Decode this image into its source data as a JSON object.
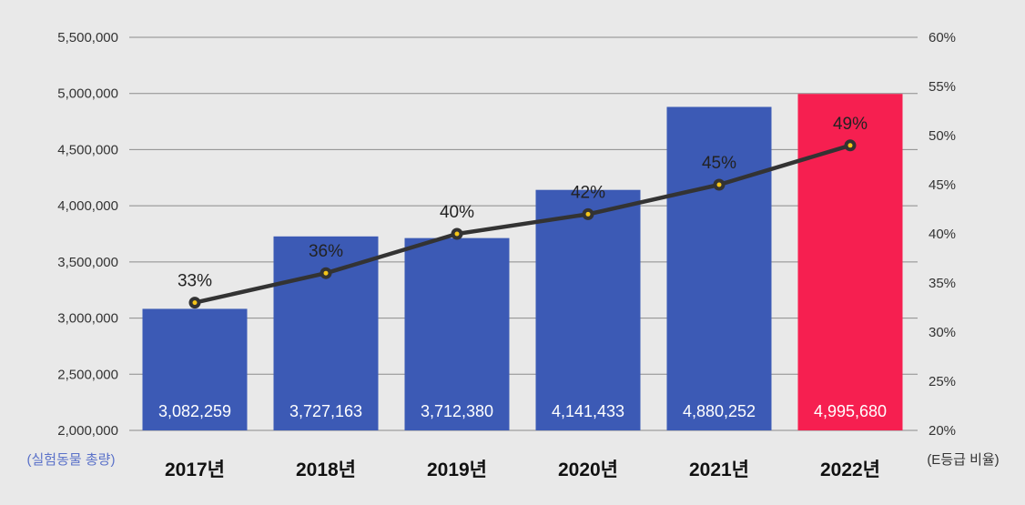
{
  "chart_data": {
    "type": "bar",
    "categories": [
      "2017년",
      "2018년",
      "2019년",
      "2020년",
      "2021년",
      "2022년"
    ],
    "series": [
      {
        "values": [
          3082259,
          3727163,
          3712380,
          4141433,
          4880252,
          4995680
        ],
        "value_labels": [
          "3,082,259",
          "3,727,163",
          "3,712,380",
          "4,141,433",
          "4,880,252",
          "4,995,680"
        ],
        "color": "#3c5ab5",
        "highlight_color": "#f61f50",
        "highlight_index": 5,
        "axis": "left"
      },
      {
        "type": "line",
        "values": [
          33,
          36,
          40,
          42,
          45,
          49
        ],
        "value_labels": [
          "33%",
          "36%",
          "40%",
          "42%",
          "45%",
          "49%"
        ],
        "color": "#333333",
        "marker_color": "#f5c518",
        "axis": "right"
      }
    ],
    "ylabel": "(실험동물 총량)",
    "y2label": "(E등급 비율)",
    "ylim": [
      2000000,
      5500000
    ],
    "y2lim": [
      20,
      60
    ],
    "yticks": [
      "2,000,000",
      "2,500,000",
      "3,000,000",
      "3,500,000",
      "4,000,000",
      "4,500,000",
      "5,000,000",
      "5,500,000"
    ],
    "y2ticks": [
      "20%",
      "25%",
      "30%",
      "35%",
      "40%",
      "45%",
      "50%",
      "55%",
      "60%"
    ],
    "grid": true,
    "ylabel_color": "#5b72c9"
  }
}
